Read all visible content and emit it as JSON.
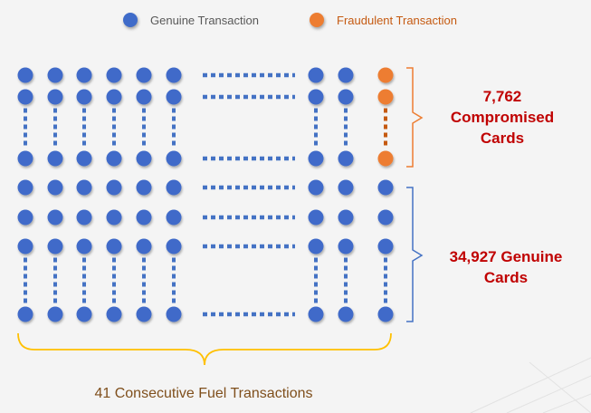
{
  "legend": {
    "genuine": {
      "label": "Genuine Transaction",
      "color": "#3f6bc9"
    },
    "fraud": {
      "label": "Fraudulent Transaction",
      "color": "#ed7d31"
    }
  },
  "legend_text_colors": {
    "genuine": "#595959",
    "fraud": "#c55a11"
  },
  "groups": {
    "compromised": {
      "line1": "7,762",
      "line2": "Compromised",
      "line3": "Cards",
      "color": "#c00000",
      "bracket_color": "#ed7d31"
    },
    "genuine": {
      "line1": "34,927 Genuine",
      "line2": "Cards",
      "color": "#c00000",
      "bracket_color": "#4472c4"
    }
  },
  "bottom_label": {
    "text": "41 Consecutive Fuel Transactions",
    "color": "#7f4f1c",
    "brace_color": "#ffc000"
  }
}
